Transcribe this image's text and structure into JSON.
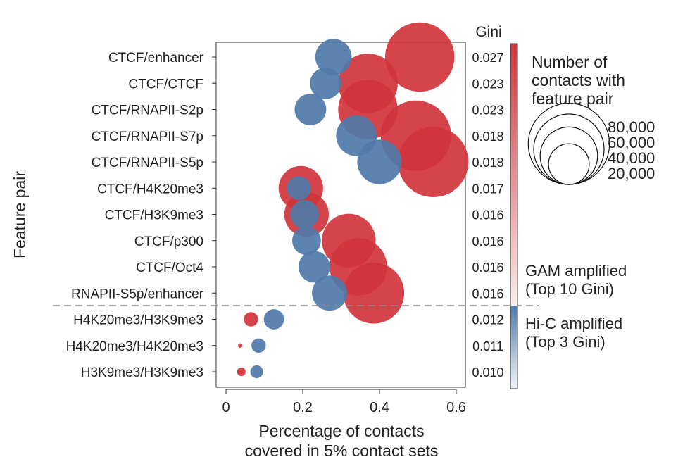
{
  "chart_data": {
    "type": "scatter",
    "xlabel_line1": "Percentage of contacts",
    "xlabel_line2": "covered in 5% contact sets",
    "ylabel": "Feature pair",
    "xlim": [
      0,
      0.62
    ],
    "xticks": [
      0,
      0.2,
      0.4,
      0.6
    ],
    "xtick_labels": [
      "0",
      "0.2",
      "0.4",
      "0.6"
    ],
    "categories": [
      "CTCF/enhancer",
      "CTCF/CTCF",
      "CTCF/RNAPII-S2p",
      "CTCF/RNAPII-S7p",
      "CTCF/RNAPII-S5p",
      "CTCF/H4K20me3",
      "CTCF/H3K9me3",
      "CTCF/p300",
      "CTCF/Oct4",
      "RNAPII-S5p/enhancer",
      "H4K20me3/H3K9me3",
      "H4K20me3/H4K20me3",
      "H3K9me3/H3K9me3"
    ],
    "gini_title": "Gini",
    "gini_values": [
      "0.027",
      "0.023",
      "0.023",
      "0.018",
      "0.018",
      "0.017",
      "0.016",
      "0.016",
      "0.016",
      "0.016",
      "0.012",
      "0.011",
      "0.010"
    ],
    "series": [
      {
        "name": "GAM",
        "color": "#d0343b",
        "x": [
          0.505,
          0.37,
          0.37,
          0.495,
          0.54,
          0.195,
          0.21,
          0.32,
          0.345,
          0.385,
          0.065,
          0.037,
          0.04
        ],
        "contacts": [
          58000,
          43000,
          43000,
          60000,
          60000,
          24000,
          24000,
          35000,
          40000,
          45000,
          2500,
          250,
          900
        ]
      },
      {
        "name": "Hi-C",
        "color": "#4f7aa9",
        "x": [
          0.28,
          0.26,
          0.22,
          0.34,
          0.4,
          0.19,
          0.205,
          0.21,
          0.23,
          0.27,
          0.125,
          0.085,
          0.08
        ],
        "contacts": [
          16000,
          12000,
          12000,
          20000,
          24000,
          7000,
          10000,
          10000,
          12000,
          15000,
          5000,
          2500,
          2000
        ]
      }
    ],
    "divider_after_index": 9,
    "size_legend": {
      "title_lines": [
        "Number of",
        "contacts with",
        "feature pair"
      ],
      "values": [
        80000,
        60000,
        40000,
        20000
      ],
      "labels": [
        "80,000",
        "60,000",
        "40,000",
        "20,000"
      ]
    },
    "colorbar": {
      "top_label_lines": [
        "GAM amplified",
        "(Top 10 Gini)"
      ],
      "bottom_label_lines": [
        "Hi-C amplified",
        "(Top 3 Gini)"
      ],
      "gam_color": "#d0343b",
      "hic_color": "#4f7aa9"
    }
  }
}
